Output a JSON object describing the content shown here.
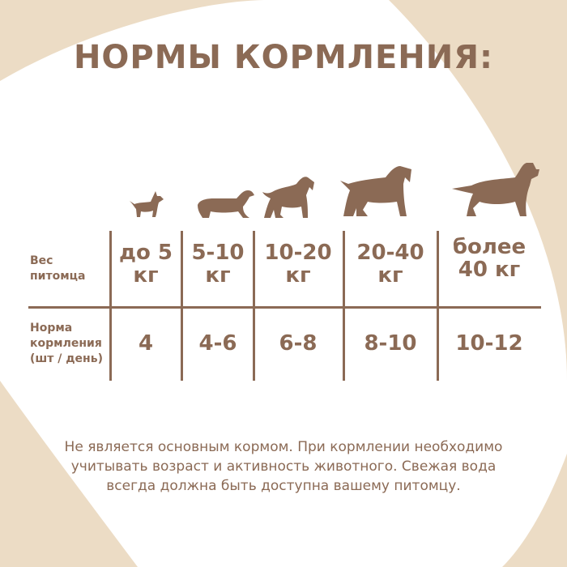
{
  "title": "НОРМЫ КОРМЛЕНИЯ:",
  "colors": {
    "accent": "#8b6a55",
    "background": "#ecdcc5",
    "heart": "#ffffff"
  },
  "icons": [
    "chihuahua-icon",
    "dachshund-icon",
    "schnauzer-icon",
    "terrier-icon",
    "large-dog-icon"
  ],
  "table": {
    "row_labels": {
      "weight": [
        "Вес",
        "питомца"
      ],
      "norm": [
        "Норма",
        "кормления",
        "(шт / день)"
      ]
    },
    "columns": [
      {
        "weight": [
          "до 5",
          "кг"
        ],
        "norm": "4"
      },
      {
        "weight": [
          "5-10",
          "кг"
        ],
        "norm": "4-6"
      },
      {
        "weight": [
          "10-20",
          "кг"
        ],
        "norm": "6-8"
      },
      {
        "weight": [
          "20-40",
          "кг"
        ],
        "norm": "8-10"
      },
      {
        "weight": [
          "более",
          "40 кг"
        ],
        "norm": "10-12"
      }
    ]
  },
  "note": [
    "Не является основным кормом. При кормлении необходимо",
    "учитывать возраст и активность животного. Свежая вода",
    "всегда должна быть доступна вашему питомцу."
  ]
}
